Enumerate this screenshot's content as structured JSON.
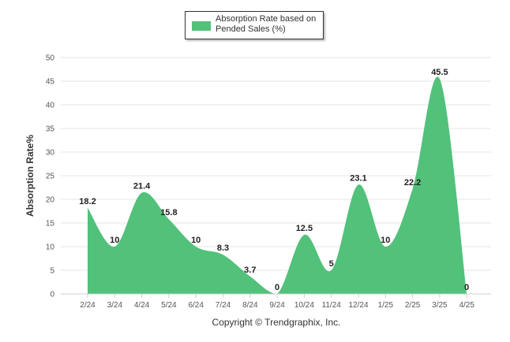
{
  "chart_data": {
    "type": "area",
    "categories": [
      "2/24",
      "3/24",
      "4/24",
      "5/24",
      "6/24",
      "7/24",
      "8/24",
      "9/24",
      "10/24",
      "11/24",
      "12/24",
      "1/25",
      "2/25",
      "3/25",
      "4/25"
    ],
    "series": [
      {
        "name": "Absorption Rate based on Pended Sales (%)",
        "values": [
          18.2,
          10,
          21.4,
          15.8,
          10,
          8.3,
          3.7,
          0,
          12.5,
          5,
          23.1,
          10,
          22.2,
          45.5,
          0
        ]
      }
    ],
    "title": "",
    "xlabel": "",
    "ylabel": "Absorption Rate%",
    "ylim": [
      0,
      50
    ],
    "yticks": [
      0,
      5,
      10,
      15,
      20,
      25,
      30,
      35,
      40,
      45,
      50
    ],
    "grid": true,
    "legend": "top-center",
    "color": "#52c17a"
  },
  "legend": {
    "line1": "Absorption Rate based on",
    "line2": "Pended Sales (%)"
  },
  "copyright": "Copyright © Trendgraphix, Inc."
}
